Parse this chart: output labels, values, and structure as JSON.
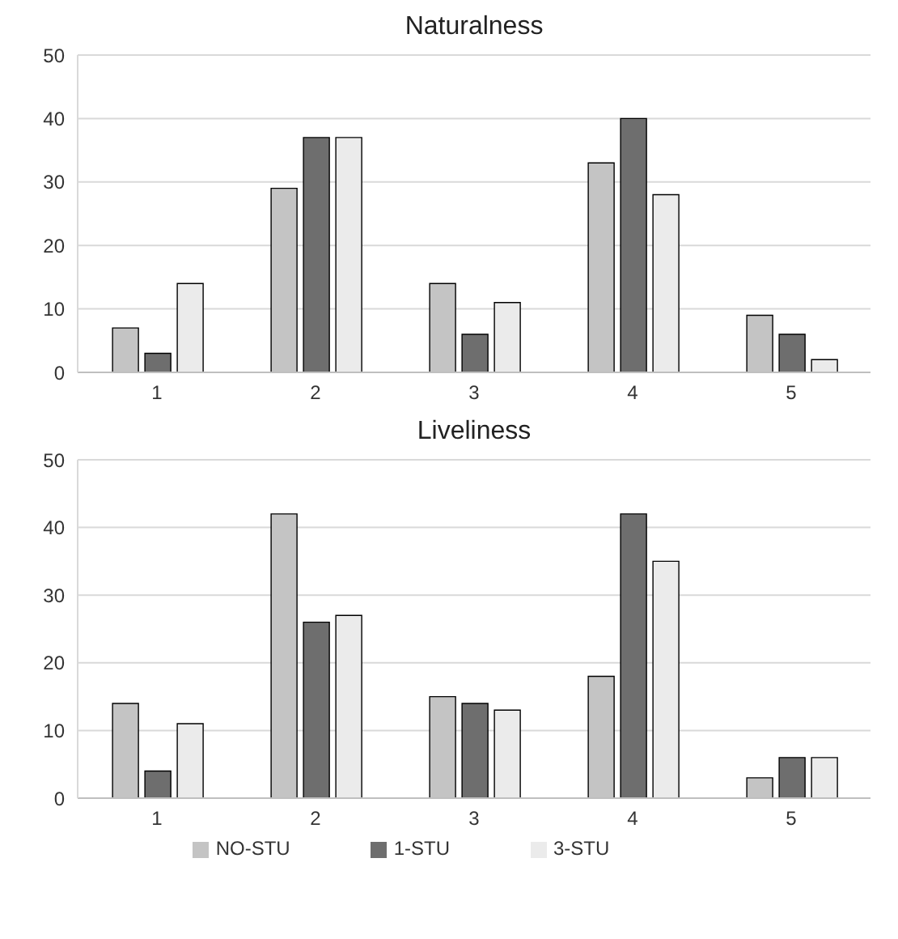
{
  "chart_data": [
    {
      "type": "bar",
      "title": "Naturalness",
      "categories": [
        "1",
        "2",
        "3",
        "4",
        "5"
      ],
      "series": [
        {
          "color": "#c4c4c4",
          "values": [
            7,
            29,
            14,
            33,
            9
          ]
        },
        {
          "color": "#6e6e6e",
          "values": [
            3,
            37,
            6,
            40,
            6
          ]
        },
        {
          "color": "#ebebeb",
          "values": [
            14,
            37,
            11,
            28,
            2
          ]
        }
      ],
      "ylim": [
        0,
        50
      ],
      "yticks": [
        0,
        10,
        20,
        30,
        40,
        50
      ],
      "grid": "y"
    },
    {
      "type": "bar",
      "title": "Liveliness",
      "categories": [
        "1",
        "2",
        "3",
        "4",
        "5"
      ],
      "series": [
        {
          "name": "NO-STU",
          "color": "#c4c4c4",
          "values": [
            14,
            42,
            15,
            18,
            3
          ]
        },
        {
          "name": "1-STU",
          "color": "#6e6e6e",
          "values": [
            4,
            26,
            14,
            42,
            6
          ]
        },
        {
          "name": "3-STU",
          "color": "#ebebeb",
          "values": [
            11,
            27,
            13,
            35,
            6
          ]
        }
      ],
      "ylim": [
        0,
        50
      ],
      "yticks": [
        0,
        10,
        20,
        30,
        40,
        50
      ],
      "grid": "y",
      "legend": "bottom"
    }
  ]
}
